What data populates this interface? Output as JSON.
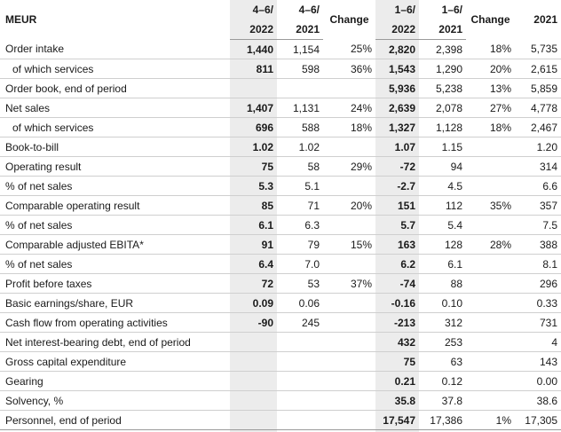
{
  "header": {
    "unit": "MEUR",
    "col1_top": "4–6/",
    "col1_bottom": "2022",
    "col2_top": "4–6/",
    "col2_bottom": "2021",
    "col3": "Change",
    "col4_top": "1–6/",
    "col4_bottom": "2022",
    "col5_top": "1–6/",
    "col5_bottom": "2021",
    "col6": "Change",
    "col7": "2021"
  },
  "rows": [
    {
      "label": "Order intake",
      "sub": false,
      "values": [
        "1,440",
        "1,154",
        "25%",
        "2,820",
        "2,398",
        "18%",
        "5,735"
      ]
    },
    {
      "label": "of which services",
      "sub": true,
      "values": [
        "811",
        "598",
        "36%",
        "1,543",
        "1,290",
        "20%",
        "2,615"
      ]
    },
    {
      "label": "Order book, end of period",
      "sub": false,
      "values": [
        "",
        "",
        "",
        "5,936",
        "5,238",
        "13%",
        "5,859"
      ]
    },
    {
      "label": "Net sales",
      "sub": false,
      "values": [
        "1,407",
        "1,131",
        "24%",
        "2,639",
        "2,078",
        "27%",
        "4,778"
      ]
    },
    {
      "label": "of which services",
      "sub": true,
      "values": [
        "696",
        "588",
        "18%",
        "1,327",
        "1,128",
        "18%",
        "2,467"
      ]
    },
    {
      "label": "Book-to-bill",
      "sub": false,
      "values": [
        "1.02",
        "1.02",
        "",
        "1.07",
        "1.15",
        "",
        "1.20"
      ]
    },
    {
      "label": "Operating result",
      "sub": false,
      "values": [
        "75",
        "58",
        "29%",
        "-72",
        "94",
        "",
        "314"
      ]
    },
    {
      "label": "% of net sales",
      "sub": false,
      "values": [
        "5.3",
        "5.1",
        "",
        "-2.7",
        "4.5",
        "",
        "6.6"
      ]
    },
    {
      "label": "Comparable operating result",
      "sub": false,
      "values": [
        "85",
        "71",
        "20%",
        "151",
        "112",
        "35%",
        "357"
      ]
    },
    {
      "label": "% of net sales",
      "sub": false,
      "values": [
        "6.1",
        "6.3",
        "",
        "5.7",
        "5.4",
        "",
        "7.5"
      ]
    },
    {
      "label": "Comparable adjusted EBITA*",
      "sub": false,
      "values": [
        "91",
        "79",
        "15%",
        "163",
        "128",
        "28%",
        "388"
      ]
    },
    {
      "label": "% of net sales",
      "sub": false,
      "values": [
        "6.4",
        "7.0",
        "",
        "6.2",
        "6.1",
        "",
        "8.1"
      ]
    },
    {
      "label": "Profit before taxes",
      "sub": false,
      "values": [
        "72",
        "53",
        "37%",
        "-74",
        "88",
        "",
        "296"
      ]
    },
    {
      "label": "Basic earnings/share, EUR",
      "sub": false,
      "values": [
        "0.09",
        "0.06",
        "",
        "-0.16",
        "0.10",
        "",
        "0.33"
      ]
    },
    {
      "label": "Cash flow from operating activities",
      "sub": false,
      "values": [
        "-90",
        "245",
        "",
        "-213",
        "312",
        "",
        "731"
      ]
    },
    {
      "label": "Net interest-bearing debt, end of period",
      "sub": false,
      "values": [
        "",
        "",
        "",
        "432",
        "253",
        "",
        "4"
      ]
    },
    {
      "label": "Gross capital expenditure",
      "sub": false,
      "values": [
        "",
        "",
        "",
        "75",
        "63",
        "",
        "143"
      ]
    },
    {
      "label": "Gearing",
      "sub": false,
      "values": [
        "",
        "",
        "",
        "0.21",
        "0.12",
        "",
        "0.00"
      ]
    },
    {
      "label": "Solvency, %",
      "sub": false,
      "values": [
        "",
        "",
        "",
        "35.8",
        "37.8",
        "",
        "38.6"
      ]
    },
    {
      "label": "Personnel, end of period",
      "sub": false,
      "values": [
        "",
        "",
        "",
        "17,547",
        "17,386",
        "1%",
        "17,305"
      ]
    }
  ]
}
